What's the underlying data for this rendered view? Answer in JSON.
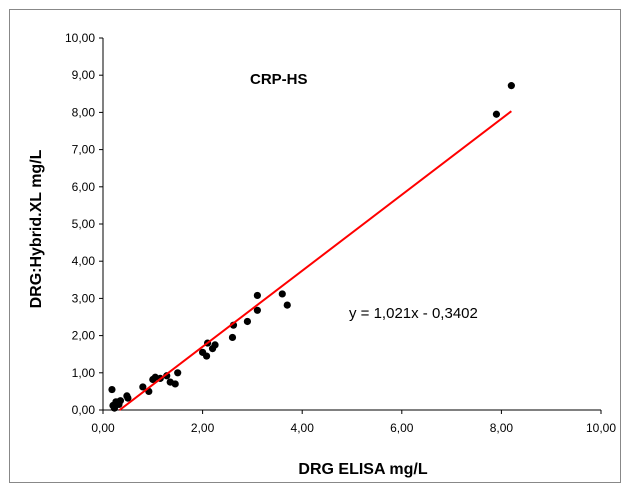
{
  "chart_data": {
    "type": "scatter",
    "title": "CRP-HS",
    "xlabel": "DRG ELISA mg/L",
    "ylabel": "DRG:Hybrid.XL  mg/L",
    "xlim": [
      0,
      10
    ],
    "ylim": [
      0,
      10
    ],
    "x_ticks": [
      "0,00",
      "2,00",
      "4,00",
      "6,00",
      "8,00",
      "10,00"
    ],
    "y_ticks": [
      "0,00",
      "1,00",
      "2,00",
      "3,00",
      "4,00",
      "5,00",
      "6,00",
      "7,00",
      "8,00",
      "9,00",
      "10,00"
    ],
    "grid": false,
    "marker_color": "#000000",
    "trendline_color": "#ff0000",
    "trendline": {
      "slope": 1.021,
      "intercept": -0.3402,
      "x_range": [
        0.33,
        8.2
      ]
    },
    "equation_label": "y = 1,021x - 0,3402",
    "points": [
      {
        "x": 0.18,
        "y": 0.55
      },
      {
        "x": 0.2,
        "y": 0.12
      },
      {
        "x": 0.23,
        "y": 0.05
      },
      {
        "x": 0.26,
        "y": 0.22
      },
      {
        "x": 0.32,
        "y": 0.15
      },
      {
        "x": 0.35,
        "y": 0.25
      },
      {
        "x": 0.48,
        "y": 0.38
      },
      {
        "x": 0.5,
        "y": 0.32
      },
      {
        "x": 0.8,
        "y": 0.62
      },
      {
        "x": 0.92,
        "y": 0.5
      },
      {
        "x": 1.0,
        "y": 0.82
      },
      {
        "x": 1.05,
        "y": 0.88
      },
      {
        "x": 1.15,
        "y": 0.85
      },
      {
        "x": 1.28,
        "y": 0.92
      },
      {
        "x": 1.35,
        "y": 0.75
      },
      {
        "x": 1.45,
        "y": 0.7
      },
      {
        "x": 1.5,
        "y": 1.0
      },
      {
        "x": 2.0,
        "y": 1.55
      },
      {
        "x": 2.08,
        "y": 1.45
      },
      {
        "x": 2.1,
        "y": 1.8
      },
      {
        "x": 2.2,
        "y": 1.65
      },
      {
        "x": 2.25,
        "y": 1.75
      },
      {
        "x": 2.6,
        "y": 1.95
      },
      {
        "x": 2.62,
        "y": 2.28
      },
      {
        "x": 2.9,
        "y": 2.38
      },
      {
        "x": 3.1,
        "y": 3.08
      },
      {
        "x": 3.1,
        "y": 2.68
      },
      {
        "x": 3.6,
        "y": 3.12
      },
      {
        "x": 3.7,
        "y": 2.82
      },
      {
        "x": 7.9,
        "y": 7.95
      },
      {
        "x": 8.2,
        "y": 8.72
      }
    ]
  }
}
